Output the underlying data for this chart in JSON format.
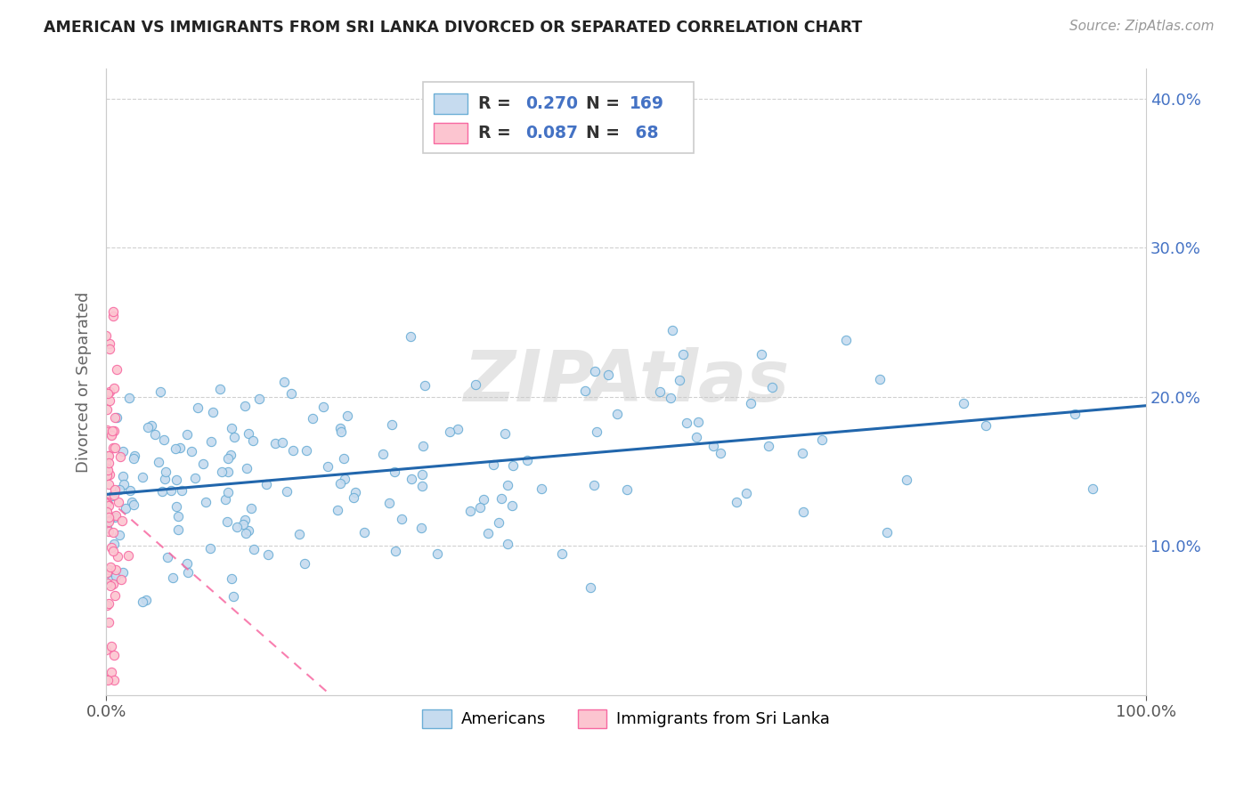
{
  "title": "AMERICAN VS IMMIGRANTS FROM SRI LANKA DIVORCED OR SEPARATED CORRELATION CHART",
  "source": "Source: ZipAtlas.com",
  "ylabel": "Divorced or Separated",
  "legend_americans": "Americans",
  "legend_sri_lanka": "Immigrants from Sri Lanka",
  "r_americans": 0.27,
  "n_americans": 169,
  "r_sri_lanka": 0.087,
  "n_sri_lanka": 68,
  "blue_dot_face": "#c6dbef",
  "blue_dot_edge": "#6baed6",
  "pink_dot_face": "#fcc5d0",
  "pink_dot_edge": "#f768a1",
  "blue_line_color": "#2166ac",
  "pink_line_color": "#f768a1",
  "watermark": "ZIPAtlas",
  "xlim": [
    0.0,
    1.0
  ],
  "ylim": [
    0.0,
    0.42
  ],
  "xtick_labels": [
    "0.0%",
    "100.0%"
  ],
  "ytick_positions": [
    0.1,
    0.2,
    0.3,
    0.4
  ],
  "ytick_labels": [
    "10.0%",
    "20.0%",
    "30.0%",
    "40.0%"
  ],
  "legend_color_R_N": "#4472c4",
  "legend_color_text": "#333333"
}
